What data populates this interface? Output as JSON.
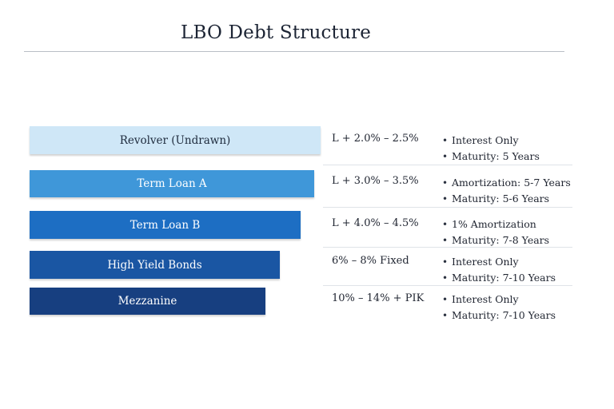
{
  "title": "LBO Debt Structure",
  "tranches": [
    {
      "name": "Revolver (Undrawn)",
      "rate": "L + 2.0% – 2.5%",
      "terms": [
        "Interest Only",
        "Maturity: 5 Years"
      ],
      "color": "#cfe7f7",
      "text_color": "#1d2a3c"
    },
    {
      "name": "Term Loan A",
      "rate": "L + 3.0% – 3.5%",
      "terms": [
        "Amortization: 5-7 Years",
        "Maturity: 5-6 Years"
      ],
      "color": "#3f97d9",
      "text_color": "#ffffff"
    },
    {
      "name": "Term Loan B",
      "rate": "L + 4.0% – 4.5%",
      "terms": [
        "1% Amortization",
        "Maturity: 7-8 Years"
      ],
      "color": "#1d6ec3",
      "text_color": "#ffffff"
    },
    {
      "name": "High Yield Bonds",
      "rate": "6% – 8% Fixed",
      "terms": [
        "Interest Only",
        "Maturity: 7-10 Years"
      ],
      "color": "#1a56a3",
      "text_color": "#ffffff"
    },
    {
      "name": "Mezzanine",
      "rate": "10% – 14% + PIK",
      "terms": [
        "Interest Only",
        "Maturity: 7-10 Years"
      ],
      "color": "#173f80",
      "text_color": "#ffffff"
    }
  ]
}
